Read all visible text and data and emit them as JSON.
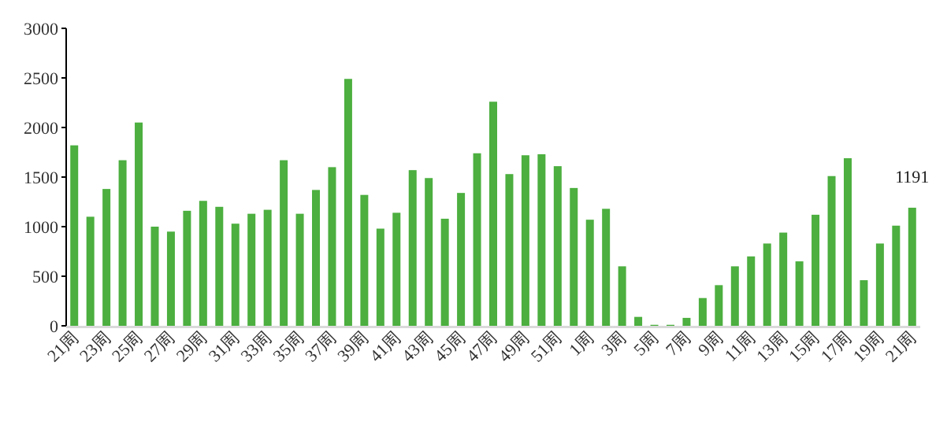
{
  "chart_data": {
    "type": "bar",
    "categories": [
      "21周",
      null,
      "23周",
      null,
      "25周",
      null,
      "27周",
      null,
      "29周",
      null,
      "31周",
      null,
      "33周",
      null,
      "35周",
      null,
      "37周",
      null,
      "39周",
      null,
      "41周",
      null,
      "43周",
      null,
      "45周",
      null,
      "47周",
      null,
      "49周",
      null,
      "51周",
      null,
      "1周",
      null,
      "3周",
      null,
      "5周",
      null,
      "7周",
      null,
      "9周",
      null,
      "11周",
      null,
      "13周",
      null,
      "15周",
      null,
      "17周",
      null,
      "19周",
      null,
      "21周"
    ],
    "values": [
      1820,
      1100,
      1380,
      1670,
      2050,
      1000,
      950,
      1160,
      1260,
      1200,
      1030,
      1130,
      1170,
      1670,
      1130,
      1370,
      1600,
      2490,
      1320,
      980,
      1140,
      1570,
      1490,
      1080,
      1340,
      1740,
      2260,
      1530,
      1720,
      1730,
      1610,
      1390,
      1070,
      1180,
      600,
      90,
      10,
      10,
      80,
      280,
      410,
      600,
      700,
      830,
      940,
      650,
      1120,
      1510,
      1690,
      460,
      830,
      1010,
      1191
    ],
    "value_labels": [
      null,
      null,
      null,
      null,
      null,
      null,
      null,
      null,
      null,
      null,
      null,
      null,
      null,
      null,
      null,
      null,
      null,
      null,
      null,
      null,
      null,
      null,
      null,
      null,
      null,
      null,
      null,
      null,
      null,
      null,
      null,
      null,
      null,
      null,
      null,
      null,
      null,
      null,
      null,
      null,
      null,
      null,
      null,
      null,
      null,
      null,
      null,
      null,
      null,
      null,
      null,
      null,
      "1191"
    ],
    "color": "#4caf3f",
    "ylim": [
      0,
      3000
    ],
    "yticks": [
      0,
      500,
      1000,
      1500,
      2000,
      2500,
      3000
    ],
    "grid": false
  }
}
